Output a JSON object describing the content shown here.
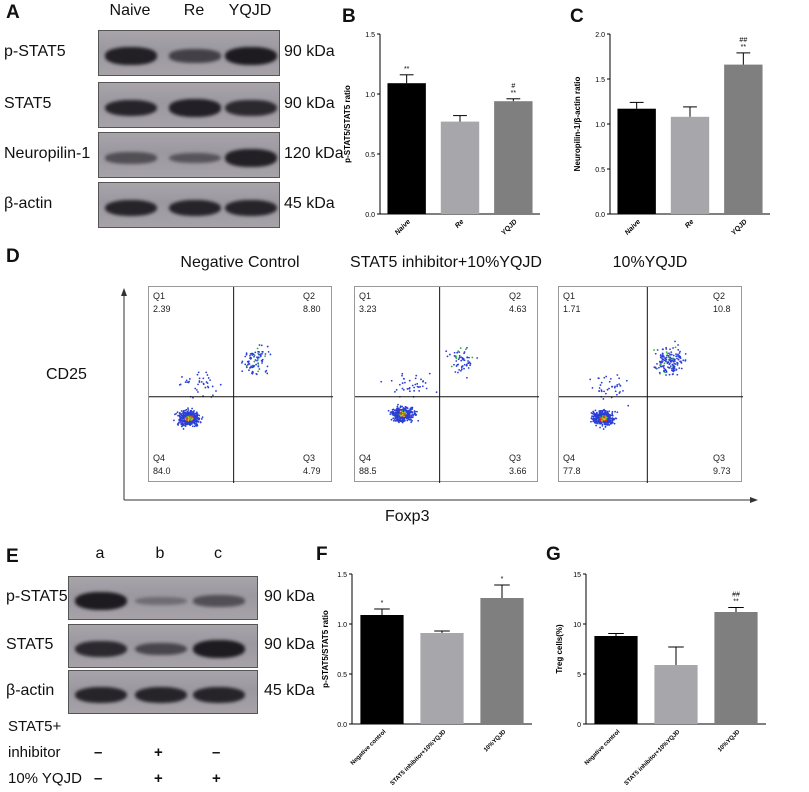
{
  "panels": {
    "A": {
      "label": "A",
      "columns": [
        "Naive",
        "Re",
        "YQJD"
      ],
      "rows": [
        {
          "name": "p-STAT5",
          "kda": "90 kDa",
          "bands": [
            0.95,
            0.6,
            1.0
          ]
        },
        {
          "name": "STAT5",
          "kda": "90 kDa",
          "bands": [
            0.9,
            0.95,
            0.85
          ]
        },
        {
          "name": "Neuropilin-1",
          "kda": "120 kDa",
          "bands": [
            0.45,
            0.4,
            0.95
          ]
        },
        {
          "name": "β-actin",
          "kda": "45 kDa",
          "bands": [
            0.9,
            0.9,
            0.9
          ]
        }
      ]
    },
    "B": {
      "label": "B"
    },
    "C": {
      "label": "C"
    },
    "D": {
      "label": "D",
      "y_axis": "CD25",
      "x_axis": "Foxp3",
      "plots": [
        {
          "title": "Negative Control",
          "q1": "Q1",
          "q1v": "2.39",
          "q2": "Q2",
          "q2v": "8.80",
          "q3": "Q3",
          "q3v": "4.79",
          "q4": "Q4",
          "q4v": "84.0"
        },
        {
          "title": "STAT5 inhibitor+10%YQJD",
          "q1": "Q1",
          "q1v": "3.23",
          "q2": "Q2",
          "q2v": "4.63",
          "q3": "Q3",
          "q3v": "3.66",
          "q4": "Q4",
          "q4v": "88.5"
        },
        {
          "title": "10%YQJD",
          "q1": "Q1",
          "q1v": "1.71",
          "q2": "Q2",
          "q2v": "10.8",
          "q3": "Q3",
          "q3v": "9.73",
          "q4": "Q4",
          "q4v": "77.8"
        }
      ]
    },
    "E": {
      "label": "E",
      "columns": [
        "a",
        "b",
        "c"
      ],
      "rows": [
        {
          "name": "p-STAT5",
          "kda": "90 kDa",
          "bands": [
            1.0,
            0.15,
            0.45
          ]
        },
        {
          "name": "STAT5",
          "kda": "90 kDa",
          "bands": [
            0.85,
            0.55,
            1.0
          ]
        },
        {
          "name": "β-actin",
          "kda": "45 kDa",
          "bands": [
            0.9,
            0.9,
            0.9
          ]
        }
      ],
      "conditions": [
        {
          "label_line1": "STAT5+",
          "label_line2": "inhibitor",
          "marks": [
            "–",
            "+",
            "–"
          ]
        },
        {
          "label_line1": "10% YQJD",
          "label_line2": "",
          "marks": [
            "–",
            "+",
            "+"
          ]
        }
      ]
    },
    "F": {
      "label": "F"
    },
    "G": {
      "label": "G"
    }
  },
  "chart_data": [
    {
      "panel": "B",
      "type": "bar",
      "categories": [
        "Naive",
        "Re",
        "YQJD"
      ],
      "values": [
        1.09,
        0.77,
        0.94
      ],
      "errors": [
        0.07,
        0.05,
        0.02
      ],
      "annotations": [
        "**",
        "",
        "#\n**"
      ],
      "ylabel": "p-STAT5/STAT5 ratio",
      "ylim": [
        0,
        1.5
      ],
      "yticks": [
        "0.0",
        "0.5",
        "1.0",
        "1.5"
      ],
      "colors": [
        "#000000",
        "#a6a6ab",
        "#7f7f7f"
      ]
    },
    {
      "panel": "C",
      "type": "bar",
      "categories": [
        "Naive",
        "Re",
        "YQJD"
      ],
      "values": [
        1.17,
        1.08,
        1.66
      ],
      "errors": [
        0.07,
        0.11,
        0.13
      ],
      "annotations": [
        "",
        "",
        "##\n**"
      ],
      "ylabel": "Neuropilin-1/β-actin ratio",
      "ylim": [
        0,
        2.0
      ],
      "yticks": [
        "0.0",
        "0.5",
        "1.0",
        "1.5",
        "2.0"
      ],
      "colors": [
        "#000000",
        "#a6a6ab",
        "#7f7f7f"
      ]
    },
    {
      "panel": "F",
      "type": "bar",
      "categories": [
        "Negative control",
        "STAT5 inhibitor+10%YQJD",
        "10%YQJD"
      ],
      "values": [
        1.09,
        0.91,
        1.26
      ],
      "errors": [
        0.06,
        0.02,
        0.13
      ],
      "annotations": [
        "*",
        "",
        "*"
      ],
      "ylabel": "p-STAT5/STAT5 ratio",
      "ylim": [
        0,
        1.5
      ],
      "yticks": [
        "0.0",
        "0.5",
        "1.0",
        "1.5"
      ],
      "colors": [
        "#000000",
        "#a6a6ab",
        "#7f7f7f"
      ]
    },
    {
      "panel": "G",
      "type": "bar",
      "categories": [
        "Negative control",
        "STAT5 inhibitor+10%YQJD",
        "10%YQJD"
      ],
      "values": [
        8.8,
        5.9,
        11.2
      ],
      "errors": [
        0.25,
        1.8,
        0.45
      ],
      "annotations": [
        "",
        "",
        "##\n**"
      ],
      "ylabel": "Treg cells(%)",
      "ylim": [
        0,
        15
      ],
      "yticks": [
        "0",
        "5",
        "10",
        "15"
      ],
      "colors": [
        "#000000",
        "#a6a6ab",
        "#7f7f7f"
      ]
    }
  ]
}
